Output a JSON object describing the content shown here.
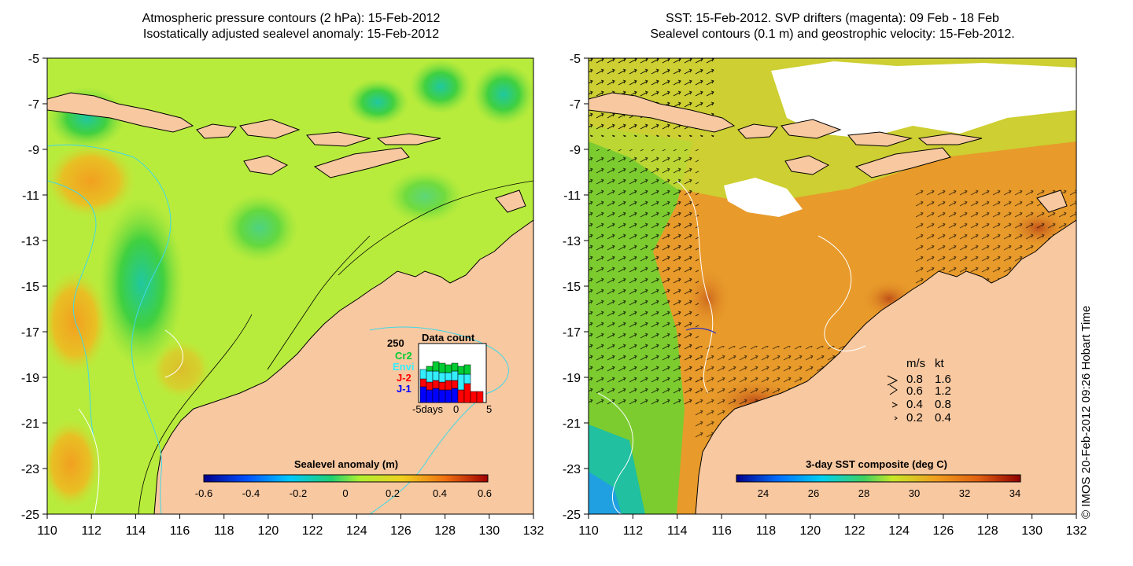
{
  "left_panel": {
    "title_line1": "Atmospheric pressure contours (2 hPa): 15-Feb-2012",
    "title_line2": "Isostatically adjusted sealevel anomaly: 15-Feb-2012",
    "colorbar_title": "Sealevel anomaly (m)",
    "colorbar_ticks": [
      "-0.6",
      "-0.4",
      "-0.2",
      "0",
      "0.2",
      "0.4",
      "0.6"
    ],
    "inset": {
      "title": "Data count",
      "max_label": "250",
      "legend": [
        {
          "label": "Cr2",
          "color": "#00cc33"
        },
        {
          "label": "Envi",
          "color": "#33eeff"
        },
        {
          "label": "J-2",
          "color": "#ff0000"
        },
        {
          "label": "J-1",
          "color": "#0000ff"
        }
      ],
      "xticks": [
        "-5days",
        "0",
        "5"
      ]
    }
  },
  "right_panel": {
    "title_line1": "SST: 15-Feb-2012. SVP drifters (magenta): 09 Feb - 18 Feb",
    "title_line2": "Sealevel contours (0.1 m) and geostrophic velocity: 15-Feb-2012.",
    "colorbar_title": "3-day SST composite (deg C)",
    "colorbar_ticks": [
      "24",
      "26",
      "28",
      "30",
      "32",
      "34"
    ],
    "velocity_legend": {
      "header_ms": "m/s",
      "header_kt": "kt",
      "rows": [
        {
          "ms": "0.8",
          "kt": "1.6"
        },
        {
          "ms": "0.6",
          "kt": "1.2"
        },
        {
          "ms": "0.4",
          "kt": "0.8"
        },
        {
          "ms": "0.2",
          "kt": "0.4"
        }
      ]
    }
  },
  "axes": {
    "lat_ticks": [
      "-5",
      "-7",
      "-9",
      "-11",
      "-13",
      "-15",
      "-17",
      "-19",
      "-21",
      "-23",
      "-25"
    ],
    "lon_ticks": [
      "110",
      "112",
      "114",
      "116",
      "118",
      "120",
      "122",
      "124",
      "126",
      "128",
      "130",
      "132"
    ]
  },
  "copyright": "© IMOS 20-Feb-2012 09:26 Hobart Time",
  "colors": {
    "land": "#f8c8a0",
    "ocean_sla": "#b8ec3c",
    "ocean_sst": "#e89a2a",
    "contour_cyan": "#40d8e8"
  }
}
